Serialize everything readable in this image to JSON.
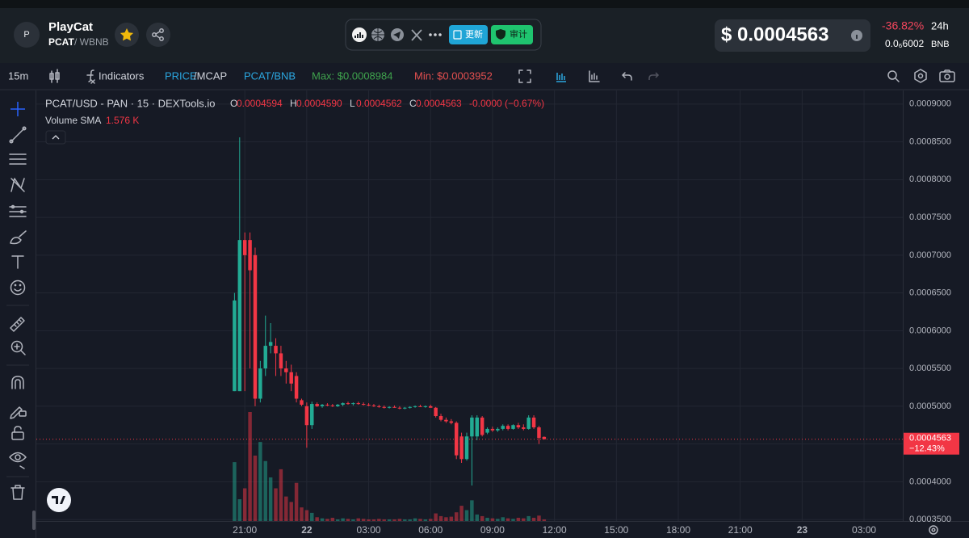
{
  "header": {
    "logo_letter": "P",
    "name": "PlayCat",
    "base": "PCAT",
    "quote": "/ WBNB",
    "buttons": [
      "更新",
      "审计"
    ],
    "price": "$ 0.0004563",
    "change": "-36.82%",
    "period": "24h",
    "price_native": "0.0₆6002",
    "native": "BNB"
  },
  "toolbar": {
    "interval": "15m",
    "indicators": "Indicators",
    "price_label": "PRICE",
    "mcap_label": "/MCAP",
    "pair": "PCAT/BNB",
    "max": "Max: $0.0008984",
    "min": "Min: $0.0003952"
  },
  "chart_data": {
    "type": "candlestick",
    "title": "PCAT/USD - PAN · 15 · DEXTools.io",
    "ohlc_legend": [
      {
        "key": "O",
        "text": "0.0004594"
      },
      {
        "key": "H",
        "text": "0.0004590"
      },
      {
        "key": "L",
        "text": "0.0004562"
      },
      {
        "key": "C",
        "text": "0.0004563"
      }
    ],
    "legend_change": "-0.0000 (−0.67%)",
    "volume_label": "Volume SMA",
    "volume_sma": "1.576 K",
    "up_color": "#22ab94",
    "down_color": "#f23645",
    "grid": true,
    "x": [
      -2,
      -1,
      0,
      1,
      2,
      3,
      4,
      5,
      6,
      7,
      8,
      9,
      10,
      11,
      12,
      13,
      14,
      15,
      16,
      17,
      18,
      19,
      20,
      21,
      22,
      23,
      24,
      25,
      26,
      27,
      28,
      29,
      30,
      31,
      32,
      33,
      34,
      35,
      36,
      37,
      38,
      39,
      40,
      41,
      42,
      43,
      44,
      45,
      46,
      47,
      48,
      49,
      50,
      51,
      52,
      53,
      54,
      55,
      56,
      57,
      58
    ],
    "open": [
      0.00052,
      0.00052,
      0.00072,
      0.00072,
      0.0007,
      0.00051,
      0.00055,
      0.00058,
      0.00058,
      0.00057,
      0.00055,
      0.000545,
      0.00054,
      0.000508,
      0.0005,
      0.000475,
      0.000503,
      0.0005,
      0.000502,
      0.000501,
      0.0005,
      0.000502,
      0.000504,
      0.000503,
      0.000504,
      0.000503,
      0.000502,
      0.000501,
      0.0005,
      0.000499,
      0.000498,
      0.000499,
      0.000498,
      0.000497,
      0.000498,
      0.000499,
      0.0005,
      0.000499,
      0.0005,
      0.000498,
      0.000487,
      0.000482,
      0.00048,
      0.000478,
      0.00046,
      0.00043,
      0.00046,
      0.00046,
      0.000485,
      0.000465,
      0.00047,
      0.000468,
      0.00047,
      0.000474,
      0.00047,
      0.000475,
      0.000472,
      0.00047,
      0.000485,
      0.000472,
      0.0004594
    ],
    "high": [
      0.00065,
      0.000856,
      0.00073,
      0.00073,
      0.00071,
      0.00056,
      0.00062,
      0.00061,
      0.00059,
      0.00058,
      0.00056,
      0.000555,
      0.000545,
      0.00051,
      0.000505,
      0.000506,
      0.000505,
      0.000503,
      0.000504,
      0.000503,
      0.000503,
      0.000505,
      0.000506,
      0.000505,
      0.000506,
      0.000505,
      0.000504,
      0.000503,
      0.000502,
      0.000501,
      0.0005,
      0.000501,
      0.0005,
      0.000499,
      0.0005,
      0.000501,
      0.000502,
      0.000501,
      0.000502,
      0.000499,
      0.00049,
      0.000485,
      0.000483,
      0.00048,
      0.000465,
      0.000465,
      0.000488,
      0.000488,
      0.000487,
      0.000472,
      0.000473,
      0.000472,
      0.000476,
      0.000476,
      0.000476,
      0.000478,
      0.000476,
      0.000488,
      0.000488,
      0.000474,
      0.00046
    ],
    "low": [
      0.00052,
      0.00052,
      0.00052,
      0.00055,
      0.0005,
      0.000505,
      0.00054,
      0.00057,
      0.00054,
      0.00054,
      0.00053,
      0.00052,
      0.000505,
      0.0005,
      0.000445,
      0.00047,
      0.000499,
      0.000498,
      0.0005,
      0.000499,
      0.000499,
      0.0005,
      0.000502,
      0.000501,
      0.000502,
      0.000501,
      0.0005,
      0.000499,
      0.000498,
      0.000497,
      0.000497,
      0.000498,
      0.000496,
      0.000496,
      0.000497,
      0.000498,
      0.000499,
      0.000498,
      0.000498,
      0.000485,
      0.00048,
      0.000478,
      0.000476,
      0.00043,
      0.000425,
      0.000428,
      0.000395,
      0.000455,
      0.00046,
      0.000463,
      0.000466,
      0.000466,
      0.000468,
      0.000468,
      0.000469,
      0.00047,
      0.000468,
      0.000469,
      0.00047,
      0.00045,
      0.0004562
    ],
    "close": [
      0.00064,
      0.00072,
      0.0007,
      0.00068,
      0.00051,
      0.00055,
      0.00058,
      0.000585,
      0.00057,
      0.00055,
      0.000545,
      0.00053,
      0.00051,
      0.000502,
      0.000475,
      0.000503,
      0.0005,
      0.000502,
      0.000501,
      0.0005,
      0.000502,
      0.000504,
      0.000503,
      0.000504,
      0.000503,
      0.000502,
      0.000501,
      0.0005,
      0.000499,
      0.000498,
      0.000499,
      0.000498,
      0.000497,
      0.000498,
      0.000499,
      0.0005,
      0.000499,
      0.0005,
      0.000498,
      0.000487,
      0.000482,
      0.00048,
      0.000478,
      0.000435,
      0.00043,
      0.00046,
      0.000485,
      0.000485,
      0.000462,
      0.00047,
      0.000468,
      0.00047,
      0.000474,
      0.00047,
      0.000475,
      0.000472,
      0.00047,
      0.000485,
      0.000472,
      0.000458,
      0.0004563
    ],
    "volume": [
      10800,
      4000,
      6000,
      20000,
      12000,
      14500,
      11000,
      8000,
      6000,
      9500,
      4500,
      3500,
      7000,
      2500,
      2000,
      1500,
      700,
      500,
      400,
      600,
      300,
      500,
      400,
      300,
      500,
      400,
      300,
      300,
      400,
      300,
      300,
      300,
      400,
      300,
      300,
      500,
      400,
      300,
      400,
      1400,
      900,
      700,
      800,
      1600,
      2800,
      2000,
      3800,
      1200,
      900,
      600,
      500,
      400,
      700,
      500,
      400,
      600,
      500,
      900,
      600,
      1000,
      300
    ],
    "xlim": [
      -40.4,
      127.5
    ],
    "xticks": [
      {
        "value": 0,
        "label": "21:00"
      },
      {
        "value": 12,
        "label": "22"
      },
      {
        "value": 24,
        "label": "03:00"
      },
      {
        "value": 36,
        "label": "06:00"
      },
      {
        "value": 48,
        "label": "09:00"
      },
      {
        "value": 60,
        "label": "12:00"
      },
      {
        "value": 72,
        "label": "15:00"
      },
      {
        "value": 84,
        "label": "18:00"
      },
      {
        "value": 96,
        "label": "21:00"
      },
      {
        "value": 108,
        "label": "23"
      },
      {
        "value": 120,
        "label": "03:00"
      }
    ],
    "ylim": [
      0.000348,
      0.000918
    ],
    "yticks": [
      {
        "value": 0.00035,
        "label": "0.0003500"
      },
      {
        "value": 0.0004,
        "label": "0.0004000"
      },
      {
        "value": 0.00045,
        "label": "0.0004500"
      },
      {
        "value": 0.0005,
        "label": "0.0005000"
      },
      {
        "value": 0.00055,
        "label": "0.0005500"
      },
      {
        "value": 0.0006,
        "label": "0.0006000"
      },
      {
        "value": 0.00065,
        "label": "0.0006500"
      },
      {
        "value": 0.0007,
        "label": "0.0007000"
      },
      {
        "value": 0.00075,
        "label": "0.0007500"
      },
      {
        "value": 0.0008,
        "label": "0.0008000"
      },
      {
        "value": 0.00085,
        "label": "0.0008500"
      },
      {
        "value": 0.0009,
        "label": "0.0009000"
      }
    ],
    "last_price": {
      "value": 0.0004563,
      "label": "0.0004563"
    },
    "last_change": "−12.43%"
  }
}
